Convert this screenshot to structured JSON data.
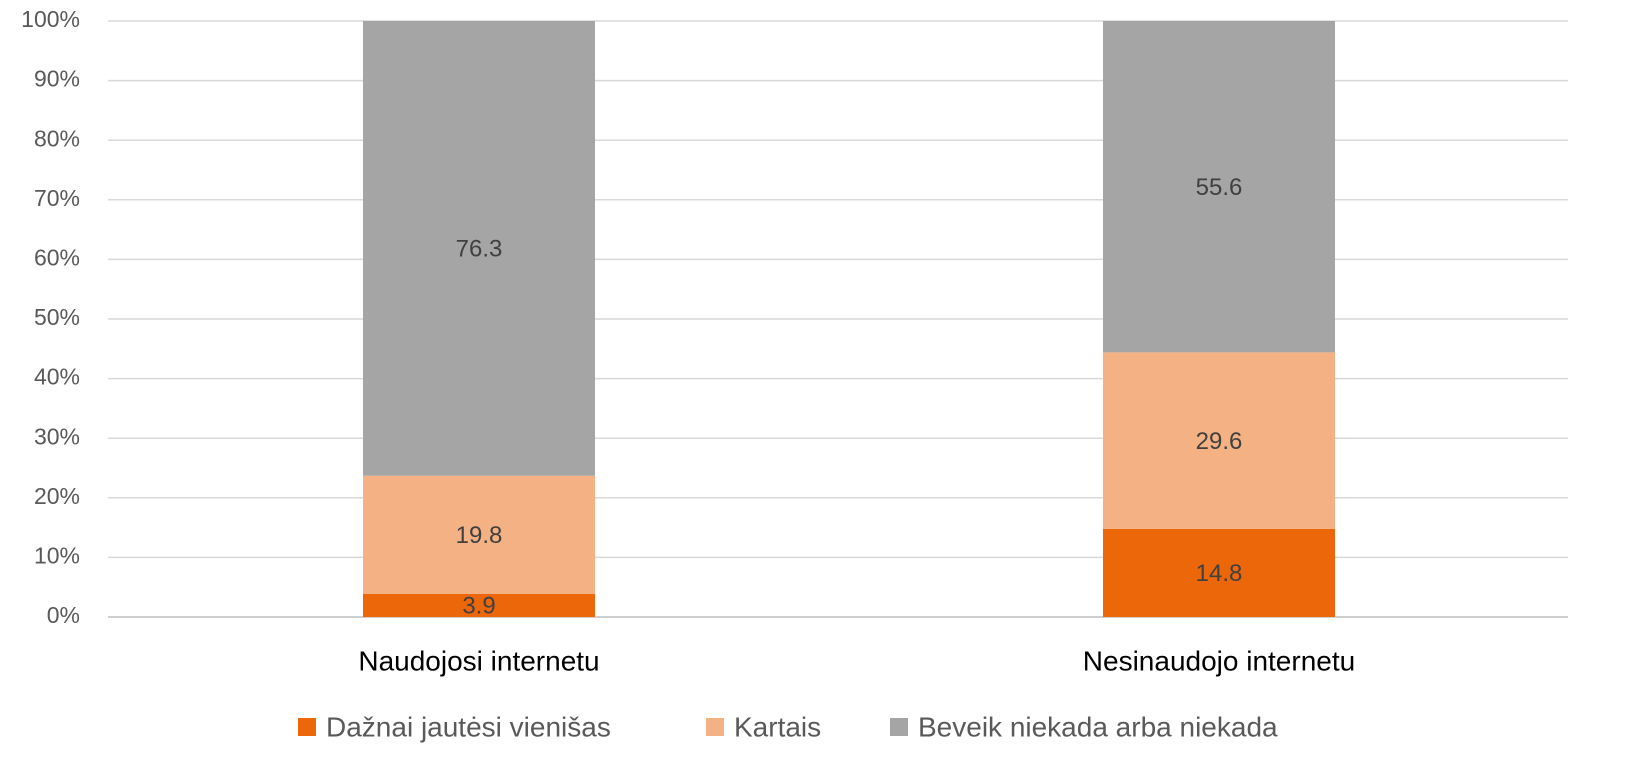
{
  "chart_data": {
    "type": "stacked_bar",
    "categories": [
      "Naudojosi internetu",
      "Nesinaudojo internetu"
    ],
    "series": [
      {
        "name": "Dažnai jautėsi vienišas",
        "color": "#ec670a",
        "values": [
          3.9,
          14.8
        ]
      },
      {
        "name": "Kartais",
        "color": "#f4b183",
        "values": [
          19.8,
          29.6
        ]
      },
      {
        "name": "Beveik niekada arba niekada",
        "color": "#a5a5a5",
        "values": [
          76.3,
          55.6
        ]
      }
    ],
    "ylim": [
      0,
      100
    ],
    "yticks": [
      {
        "value": 0,
        "label": "0%"
      },
      {
        "value": 10,
        "label": "10%"
      },
      {
        "value": 20,
        "label": "20%"
      },
      {
        "value": 30,
        "label": "30%"
      },
      {
        "value": 40,
        "label": "40%"
      },
      {
        "value": 50,
        "label": "50%"
      },
      {
        "value": 60,
        "label": "60%"
      },
      {
        "value": 70,
        "label": "70%"
      },
      {
        "value": 80,
        "label": "80%"
      },
      {
        "value": 90,
        "label": "90%"
      },
      {
        "value": 100,
        "label": "100%"
      }
    ],
    "grid": true,
    "legend": "bottom"
  }
}
